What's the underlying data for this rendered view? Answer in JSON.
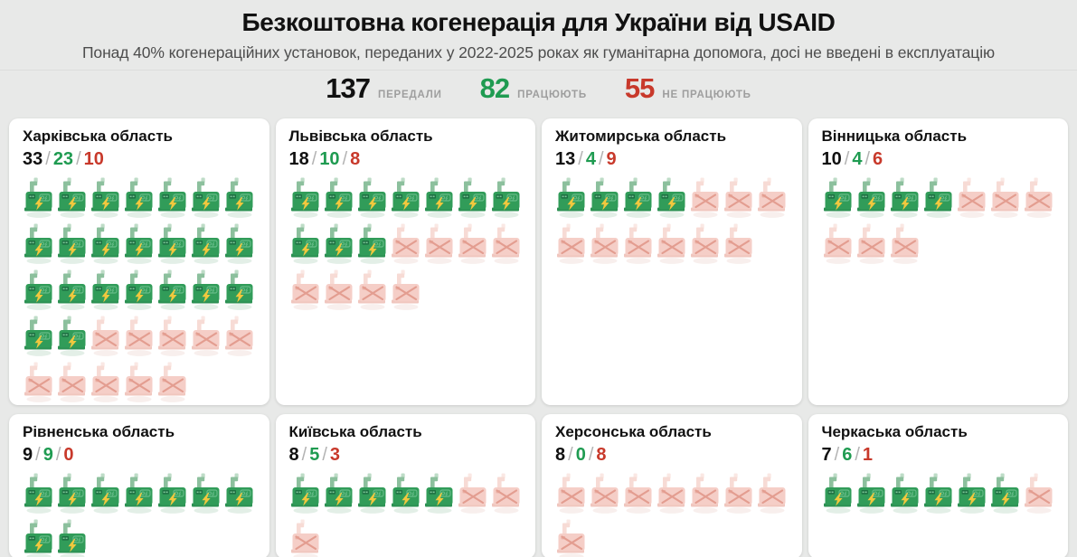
{
  "header": {
    "title": "Безкоштовна когенерація для України від USAID",
    "subtitle": "Понад 40% когенераційних установок, переданих у 2022-2025 роках як гуманітарна допомога, досі не введені в експлуатацію",
    "stats": [
      {
        "value": "137",
        "label": "ПЕРЕДАЛИ"
      },
      {
        "value": "82",
        "label": "ПРАЦЮЮТЬ"
      },
      {
        "value": "55",
        "label": "НЕ ПРАЦЮЮТЬ"
      }
    ]
  },
  "counts_separator": "/",
  "colors": {
    "background": "#e8e9e8",
    "card": "#ffffff",
    "total_text": "#111111",
    "working_text": "#1f9b51",
    "broken_text": "#c8392b",
    "label_gray": "#9e9e9e",
    "generator_green": "#319c59",
    "generator_pink": "#f5cec7",
    "bolt_yellow": "#f1c83e"
  },
  "icons": {
    "working": "generator-working-icon",
    "broken": "generator-broken-icon"
  },
  "regions": [
    {
      "name": "Харківська область",
      "total": 33,
      "working": 23,
      "broken": 10
    },
    {
      "name": "Львівська область",
      "total": 18,
      "working": 10,
      "broken": 8
    },
    {
      "name": "Житомирська область",
      "total": 13,
      "working": 4,
      "broken": 9
    },
    {
      "name": "Вінницька область",
      "total": 10,
      "working": 4,
      "broken": 6
    },
    {
      "name": "Рівненська область",
      "total": 9,
      "working": 9,
      "broken": 0
    },
    {
      "name": "Київська область",
      "total": 8,
      "working": 5,
      "broken": 3
    },
    {
      "name": "Херсонська область",
      "total": 8,
      "working": 0,
      "broken": 8
    },
    {
      "name": "Черкаська область",
      "total": 7,
      "working": 6,
      "broken": 1
    }
  ],
  "chart_data": {
    "type": "pictogram",
    "title": "Безкоштовна когенерація для України від USAID",
    "subtitle": "Понад 40% когенераційних установок, переданих у 2022-2025 роках як гуманітарна допомога, досі не введені в експлуатацію",
    "summary": {
      "передали": 137,
      "працюють": 82,
      "не працюють": 55
    },
    "categories": [
      "Харківська область",
      "Львівська область",
      "Житомирська область",
      "Вінницька область",
      "Рівненська область",
      "Київська область",
      "Херсонська область",
      "Черкаська область"
    ],
    "series": [
      {
        "name": "передали",
        "values": [
          33,
          18,
          13,
          10,
          9,
          8,
          8,
          7
        ]
      },
      {
        "name": "працюють",
        "values": [
          23,
          10,
          4,
          4,
          9,
          5,
          0,
          6
        ]
      },
      {
        "name": "не працюють",
        "values": [
          10,
          8,
          9,
          6,
          0,
          3,
          8,
          1
        ]
      }
    ],
    "layout": {
      "icons_per_row": 7,
      "unit_icon": "cogeneration-generator",
      "working_color": "#319c59",
      "broken_color": "#f5cec7"
    }
  }
}
